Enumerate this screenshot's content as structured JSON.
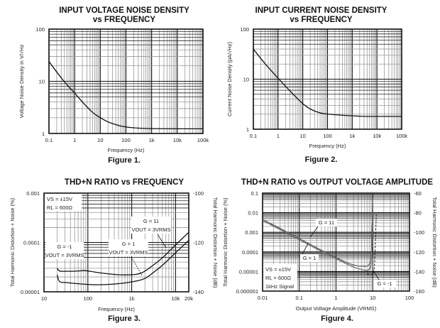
{
  "chart_data": [
    {
      "type": "line",
      "figure_label": "Figure 1.",
      "title": "INPUT VOLTAGE NOISE DENSITY",
      "subtitle": "vs FREQUENCY",
      "xlabel": "Frequency (Hz)",
      "ylabel": "Voltage Noise Density in V/√Hz",
      "xscale": "log",
      "yscale": "log",
      "xlim": [
        0.1,
        100000
      ],
      "ylim": [
        1,
        100
      ],
      "xticks": [
        0.1,
        1,
        10,
        100,
        1000,
        10000,
        100000
      ],
      "xtick_labels": [
        "0.1",
        "1",
        "10",
        "100",
        "1k",
        "10k",
        "100k"
      ],
      "yticks": [
        1,
        10,
        100
      ],
      "ytick_labels": [
        "1",
        "10",
        "100"
      ],
      "grid": true,
      "series": [
        {
          "name": "Voltage noise",
          "x": [
            0.1,
            0.2,
            0.5,
            1,
            2,
            5,
            10,
            20,
            50,
            100,
            200,
            500,
            1000,
            10000,
            100000
          ],
          "y": [
            24,
            15,
            8.5,
            6,
            4,
            2.5,
            2,
            1.65,
            1.42,
            1.33,
            1.28,
            1.25,
            1.24,
            1.23,
            1.23
          ]
        }
      ]
    },
    {
      "type": "line",
      "figure_label": "Figure 2.",
      "title": "INPUT CURRENT NOISE DENSITY",
      "subtitle": "vs FREQUENCY",
      "xlabel": "Frequency (Hz)",
      "ylabel": "Current Noise Density (pA/√Hz)",
      "xscale": "log",
      "yscale": "log",
      "xlim": [
        0.1,
        100000
      ],
      "ylim": [
        1,
        100
      ],
      "xticks": [
        0.1,
        1,
        10,
        100,
        1000,
        10000,
        100000
      ],
      "xtick_labels": [
        "0.1",
        "1",
        "10",
        "100",
        "1k",
        "10k",
        "100k"
      ],
      "yticks": [
        1,
        10,
        100
      ],
      "ytick_labels": [
        "1",
        "10",
        "100"
      ],
      "grid": true,
      "series": [
        {
          "name": "Current noise",
          "x": [
            0.1,
            0.3,
            1,
            2,
            5,
            10,
            20,
            50,
            100,
            300,
            1000,
            3000,
            10000,
            100000
          ],
          "y": [
            40,
            20,
            10.5,
            7.2,
            4.5,
            3.2,
            2.5,
            2.1,
            2.0,
            1.92,
            1.85,
            1.8,
            1.8,
            1.8
          ]
        }
      ]
    },
    {
      "type": "line",
      "figure_label": "Figure 3.",
      "title": "THD+N RATIO vs FREQUENCY",
      "xlabel": "Frequency (Hz)",
      "ylabel": "Total Harmonic Distortion + Noise (%)",
      "ylabel_right": "Total Harmonic Distortion + Noise (dB)",
      "xscale": "log",
      "yscale": "log",
      "xlim": [
        10,
        20000
      ],
      "ylim": [
        1e-05,
        0.001
      ],
      "xticks": [
        10,
        100,
        1000,
        10000,
        20000
      ],
      "xtick_labels": [
        "10",
        "100",
        "1k",
        "10k",
        "20k"
      ],
      "yticks": [
        1e-05,
        0.0001,
        0.001
      ],
      "ytick_labels": [
        "0.00001",
        "0.0001",
        "0.001"
      ],
      "yticks_right": [
        "-100",
        "-120",
        "-140"
      ],
      "grid": true,
      "conditions": [
        "VS = ±15V",
        "RL = 600Ω"
      ],
      "annotations": [
        {
          "text": "G = 11",
          "sub": "VOUT = 3VRMS"
        },
        {
          "text": "G = 1",
          "sub": "VOUT = 3VRMS"
        },
        {
          "text": "G = -1",
          "sub": "VOUT = 3VRMS"
        }
      ],
      "series": [
        {
          "name": "G = -1",
          "x": [
            20,
            22,
            30,
            50,
            80,
            100,
            200,
            500,
            1000,
            1500,
            2000,
            3000,
            5000,
            10000,
            20000
          ],
          "y": [
            3e-05,
            2.6e-05,
            2.6e-05,
            2.6e-05,
            2.7e-05,
            2.65e-05,
            2.4e-05,
            2.2e-05,
            2.2e-05,
            2.3e-05,
            2.6e-05,
            3.4e-05,
            4.8e-05,
            9e-05,
            0.00016
          ]
        },
        {
          "name": "G = 1",
          "x": [
            20,
            22,
            30,
            50,
            100,
            200,
            500,
            1000,
            2000,
            3000,
            5000,
            10000,
            20000
          ],
          "y": [
            2.2e-05,
            1.55e-05,
            1.55e-05,
            1.48e-05,
            1.4e-05,
            1.38e-05,
            1.45e-05,
            1.58e-05,
            1.8e-05,
            2.4e-05,
            3.4e-05,
            6.2e-05,
            0.00011
          ]
        }
      ]
    },
    {
      "type": "line",
      "figure_label": "Figure 4.",
      "title": "THD+N RATIO vs OUTPUT VOLTAGE AMPLITUDE",
      "xlabel": "Output Voltage Amplitude (VRMS)",
      "ylabel": "Total Harmonic Distortion + Noise (%)",
      "ylabel_right": "Total Harmonic Distortion + Noise (dB)",
      "xscale": "log",
      "yscale": "log",
      "xlim": [
        0.01,
        100
      ],
      "ylim": [
        1e-06,
        0.1
      ],
      "xticks": [
        0.01,
        0.1,
        1,
        10,
        100
      ],
      "xtick_labels": [
        "0.01",
        "0.1",
        "1",
        "10",
        "100"
      ],
      "yticks": [
        1e-06,
        1e-05,
        0.0001,
        0.001,
        0.01,
        0.1
      ],
      "ytick_labels": [
        "0.000001",
        "0.00001",
        "0.0001",
        "0.001",
        "0.01",
        "0.1"
      ],
      "yticks_right": [
        "-60",
        "-80",
        "-100",
        "-120",
        "-140",
        "-160"
      ],
      "grid": true,
      "conditions": [
        "VS = ±15V",
        "RL = 600Ω",
        "1kHz Signal"
      ],
      "annotations": [
        "G = 11",
        "G = 1",
        "G = -1"
      ],
      "series": [
        {
          "name": "G = 11",
          "x": [
            0.01,
            0.03,
            0.1,
            0.3,
            1,
            3,
            6,
            8,
            9,
            9.5,
            10
          ],
          "y": [
            0.0045,
            0.0016,
            0.00048,
            0.00016,
            5e-05,
            2e-05,
            1.8e-05,
            2e-05,
            4e-05,
            0.0003,
            0.05
          ]
        },
        {
          "name": "G = 1",
          "x": [
            0.01,
            0.03,
            0.1,
            0.3,
            1,
            3,
            6,
            8,
            9,
            9.5,
            10
          ],
          "y": [
            0.004,
            0.0014,
            0.00043,
            0.00014,
            4.5e-05,
            1.6e-05,
            1.15e-05,
            1.15e-05,
            2e-05,
            0.0003,
            0.05
          ]
        },
        {
          "name": "G = -1",
          "dashed": true,
          "x": [
            7,
            9,
            10,
            11,
            11.5,
            12,
            12.5
          ],
          "y": [
            7.5e-06,
            6.8e-06,
            7.5e-06,
            1e-05,
            0.0001,
            0.001,
            0.008
          ]
        }
      ]
    }
  ]
}
